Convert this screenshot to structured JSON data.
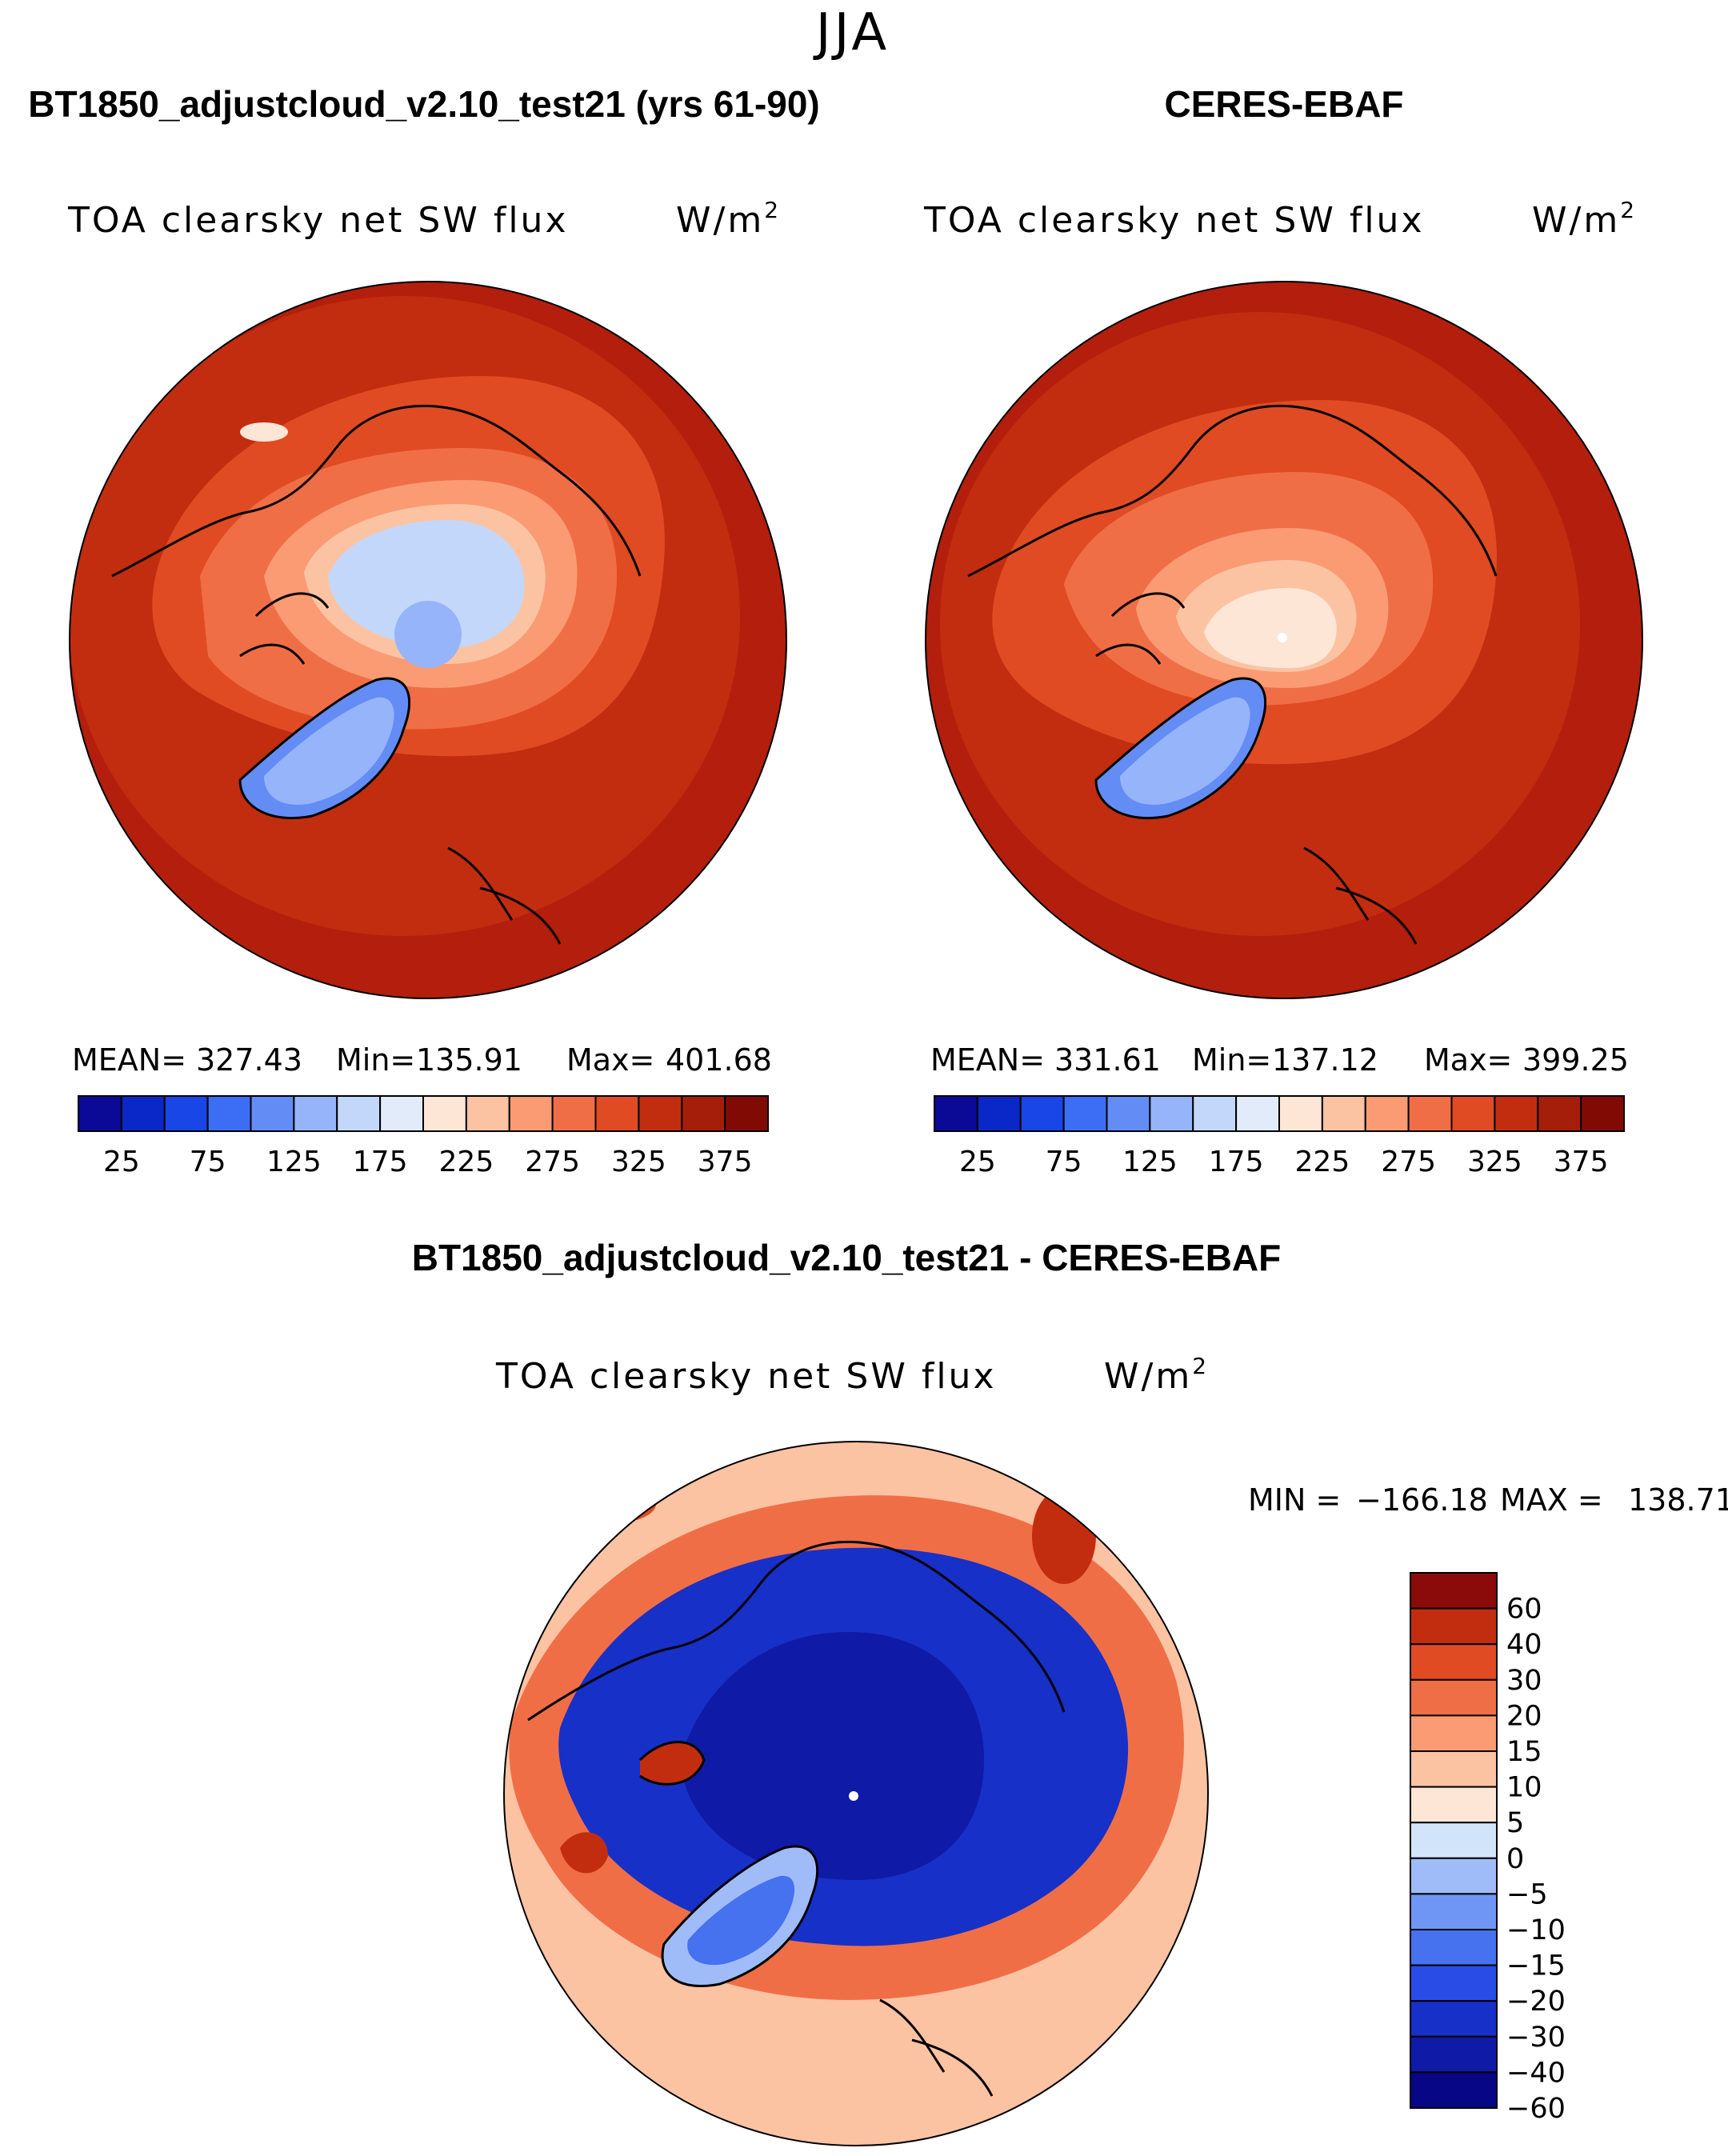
{
  "figure": {
    "season": "JJA"
  },
  "colors": {
    "abs_scale": [
      "#0a0a96",
      "#0a28c8",
      "#1946e6",
      "#3c6ef5",
      "#648cf5",
      "#96b4fa",
      "#c3d7fa",
      "#e1ebfa",
      "#fde6d6",
      "#fcc3a3",
      "#fa9b73",
      "#f06e46",
      "#e14b23",
      "#c32d0f",
      "#a51e0a",
      "#820a05"
    ],
    "diff_scale": [
      "#060686",
      "#0f1aa6",
      "#1730c8",
      "#2a4ce6",
      "#4672f0",
      "#7096f5",
      "#a0bcf8",
      "#d2e4fa",
      "#fde6d6",
      "#fcc3a3",
      "#fa9b73",
      "#f06e46",
      "#e14b23",
      "#c32d0f",
      "#8b0a0a"
    ],
    "outline": "#000000"
  },
  "chart_data": [
    {
      "type": "heatmap",
      "projection": "north-polar-stereographic",
      "title": "BT1850_adjustcloud_v2.10_test21 (yrs 61-90)",
      "variable": "TOA clearsky net SW flux",
      "units": "W/m",
      "units_exp": "2",
      "stats": {
        "mean_label": "MEAN=",
        "mean": "327.43",
        "min_label": "Min=",
        "min": "135.91",
        "max_label": "Max=",
        "max": "401.68"
      },
      "colorbar": {
        "orientation": "horizontal",
        "range": [
          0,
          400
        ],
        "levels": 16,
        "ticks": [
          "25",
          "75",
          "125",
          "175",
          "225",
          "275",
          "325",
          "375"
        ]
      },
      "features": {
        "arctic_ocean": "light blue (~150-200)",
        "pole": "~140",
        "greenland": "~140-175",
        "high_latitude_land": "~250-325",
        "mid_latitude_ocean": "~375-400"
      }
    },
    {
      "type": "heatmap",
      "projection": "north-polar-stereographic",
      "title": "CERES-EBAF",
      "variable": "TOA clearsky net SW flux",
      "units": "W/m",
      "units_exp": "2",
      "stats": {
        "mean_label": "MEAN=",
        "mean": "331.61",
        "min_label": "Min=",
        "min": "137.12",
        "max_label": "Max=",
        "max": "399.25"
      },
      "colorbar": {
        "orientation": "horizontal",
        "range": [
          0,
          400
        ],
        "levels": 16,
        "ticks": [
          "25",
          "75",
          "125",
          "175",
          "225",
          "275",
          "325",
          "375"
        ]
      },
      "features": {
        "arctic_ocean": "pale orange (~225-250)",
        "greenland": "~150-175",
        "high_latitude_land": "~275-325",
        "mid_latitude_ocean": "~375-400"
      }
    },
    {
      "type": "heatmap",
      "projection": "north-polar-stereographic",
      "title": "BT1850_adjustcloud_v2.10_test21 - CERES-EBAF",
      "variable": "TOA clearsky net SW flux",
      "units": "W/m",
      "units_exp": "2",
      "stats": {
        "min_label": "MIN =",
        "min": "−166.18",
        "max_label": "MAX =",
        "max": "138.71"
      },
      "colorbar": {
        "orientation": "vertical",
        "levels": 15,
        "ticks": [
          "60",
          "40",
          "30",
          "20",
          "15",
          "10",
          "5",
          "0",
          "−5",
          "−10",
          "−15",
          "−20",
          "−30",
          "−40",
          "−60"
        ]
      },
      "features": {
        "arctic_ocean": "deep blue (~-40 to -60)",
        "greenland": "blue/white mixed (~-5 to -20)",
        "subpolar_land_and_ocean": "orange (~10-30)",
        "mid_latitudes": "pale orange (~0-10)"
      }
    }
  ]
}
